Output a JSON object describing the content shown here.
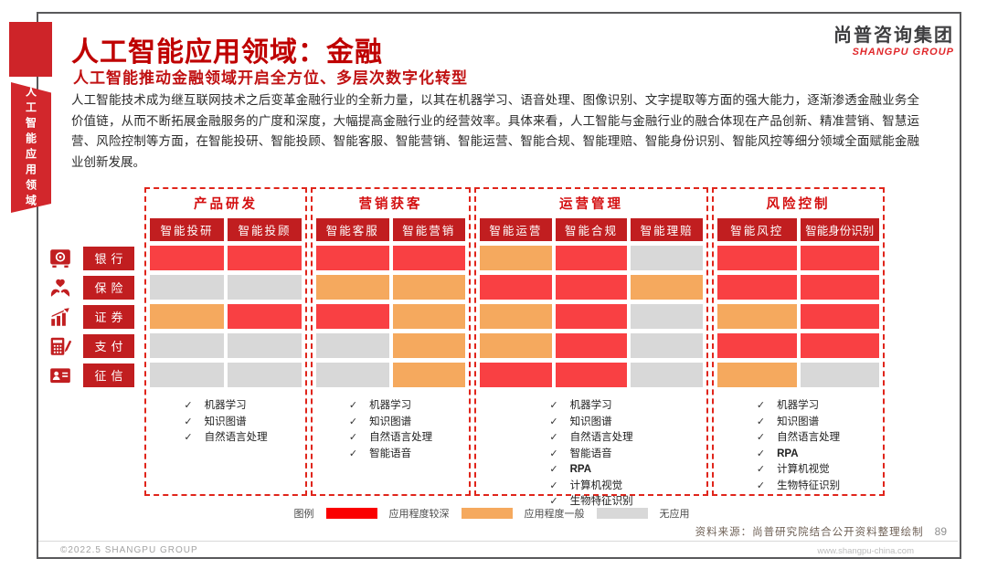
{
  "page": {
    "title": "人工智能应用领域：金融",
    "subtitle": "人工智能推动金融领域开启全方位、多层次数字化转型",
    "body": "人工智能技术成为继互联网技术之后变革金融行业的全新力量，以其在机器学习、语音处理、图像识别、文字提取等方面的强大能力，逐渐渗透金融业务全价值链，从而不断拓展金融服务的广度和深度，大幅提高金融行业的经营效率。具体来看，人工智能与金融行业的融合体现在产品创新、精准营销、智慧运营、风险控制等方面，在智能投研、智能投顾、智能客服、智能营销、智能运营、智能合规、智能理赔、智能身份识别、智能风控等细分领域全面赋能金融业创新发展。",
    "sidebar_vertical_text": "人工智能应用领域",
    "logo": {
      "cn": "尚普咨询集团",
      "en": "SHANGPU GROUP"
    }
  },
  "matrix": {
    "check_glyph": "✓",
    "groups": [
      {
        "title": "产品研发",
        "columns": [
          "智能投研",
          "智能投顾"
        ],
        "tech_list": [
          "机器学习",
          "知识图谱",
          "自然语言处理"
        ]
      },
      {
        "title": "营销获客",
        "columns": [
          "智能客服",
          "智能营销"
        ],
        "tech_list": [
          "机器学习",
          "知识图谱",
          "自然语言处理",
          "智能语音"
        ]
      },
      {
        "title": "运营管理",
        "columns": [
          "智能运营",
          "智能合规",
          "智能理赔"
        ],
        "tech_list": [
          "机器学习",
          "知识图谱",
          "自然语言处理",
          "智能语音",
          "RPA",
          "计算机视觉",
          "生物特征识别"
        ]
      },
      {
        "title": "风险控制",
        "columns": [
          "智能风控",
          "智能身份识别"
        ],
        "tech_list": [
          "机器学习",
          "知识图谱",
          "自然语言处理",
          "RPA",
          "计算机视觉",
          "生物特征识别"
        ]
      }
    ],
    "rows": [
      {
        "label": "银行",
        "icon": "safe-icon",
        "values": [
          "deep",
          "deep",
          "deep",
          "deep",
          "mid",
          "deep",
          "none",
          "deep",
          "deep"
        ]
      },
      {
        "label": "保险",
        "icon": "heart-hands-icon",
        "values": [
          "none",
          "none",
          "mid",
          "mid",
          "deep",
          "deep",
          "mid",
          "deep",
          "deep"
        ]
      },
      {
        "label": "证券",
        "icon": "growth-chart-icon",
        "values": [
          "mid",
          "deep",
          "deep",
          "mid",
          "mid",
          "deep",
          "none",
          "mid",
          "deep"
        ]
      },
      {
        "label": "支付",
        "icon": "calculator-pen-icon",
        "values": [
          "none",
          "none",
          "none",
          "mid",
          "mid",
          "deep",
          "none",
          "deep",
          "deep"
        ]
      },
      {
        "label": "征信",
        "icon": "id-card-icon",
        "values": [
          "none",
          "none",
          "none",
          "mid",
          "deep",
          "deep",
          "none",
          "mid",
          "none"
        ]
      }
    ]
  },
  "legend": {
    "label": "图例",
    "items": [
      {
        "key": "legend_deep",
        "text": "应用程度较深"
      },
      {
        "key": "cell_mid",
        "text": "应用程度一般"
      },
      {
        "key": "cell_none",
        "text": "无应用"
      }
    ]
  },
  "footer": {
    "source": "资料来源：尚普研究院结合公开资料整理绘制",
    "page_number": "89",
    "copyright": "©2022.5  SHANGPU GROUP",
    "website": "www.shangpu-china.com"
  },
  "colors": {
    "accent": "#bf0000",
    "header": "#c11e20",
    "cell_deep": "#f94043",
    "cell_mid": "#f5a95e",
    "cell_none": "#d8d8d8",
    "legend_deep": "#fa0000",
    "dashed_border": "#e0251b",
    "ribbon": "#d2272c"
  }
}
